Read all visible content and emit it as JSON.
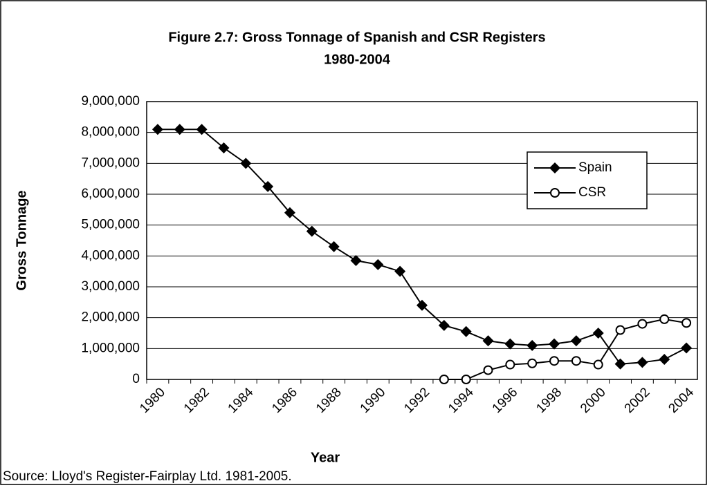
{
  "chart_data": {
    "type": "line",
    "title": [
      "Figure 2.7: Gross Tonnage of Spanish and CSR Registers",
      "1980-2004"
    ],
    "x_label": "Year",
    "y_label": "Gross Tonnage",
    "source": "Source: Lloyd's Register-Fairplay Ltd. 1981-2005.",
    "categories": [
      "1980",
      null,
      "1982",
      null,
      "1984",
      null,
      "1986",
      null,
      "1988",
      null,
      "1990",
      null,
      "1992",
      null,
      "1994",
      null,
      "1996",
      null,
      "1998",
      null,
      "2000",
      null,
      "2002",
      null,
      "2004"
    ],
    "series": [
      {
        "name": "Spain",
        "color": "#000000",
        "marker": "diamond",
        "values": [
          8100000,
          8100000,
          8100000,
          7500000,
          7000000,
          6250000,
          5400000,
          4800000,
          4300000,
          3850000,
          3720000,
          3500000,
          2400000,
          1750000,
          1550000,
          1250000,
          1150000,
          1100000,
          1150000,
          1250000,
          1500000,
          500000,
          550000,
          650000,
          1020000
        ]
      },
      {
        "name": "CSR",
        "color": "#000000",
        "marker": "circle",
        "values": [
          null,
          null,
          null,
          null,
          null,
          null,
          null,
          null,
          null,
          null,
          null,
          null,
          null,
          0,
          0,
          300000,
          480000,
          520000,
          600000,
          600000,
          480000,
          1600000,
          1800000,
          1950000,
          1830000
        ]
      }
    ],
    "ylim": [
      0,
      9000000
    ],
    "yticks": [
      0,
      {
        "value": 1000000,
        "label": "1,000,000"
      },
      {
        "value": 2000000,
        "label": "2,000,000"
      },
      {
        "value": 3000000,
        "label": "3,000,000"
      },
      {
        "value": 4000000,
        "label": "4,000,000"
      },
      {
        "value": 5000000,
        "label": "5,000,000"
      },
      {
        "value": 6000000,
        "label": "6,000,000"
      },
      {
        "value": 7000000,
        "label": "7,000,000"
      },
      {
        "value": 8000000,
        "label": "8,000,000"
      },
      {
        "value": 9000000,
        "label": "9,000,000"
      }
    ],
    "grid": true,
    "legend": "upper right"
  }
}
